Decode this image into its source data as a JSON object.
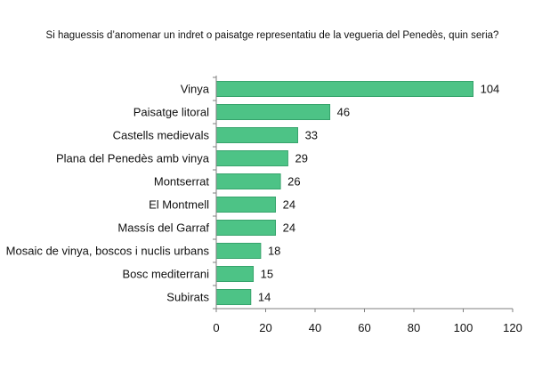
{
  "chart_data": {
    "type": "bar",
    "orientation": "horizontal",
    "title": "Si haguessis d’anomenar un indret o paisatge representatiu de la vegueria del Penedès, quin seria?",
    "categories": [
      "Vinya",
      "Paisatge litoral",
      "Castells medievals",
      "Plana del Penedès amb vinya",
      "Montserrat",
      "El Montmell",
      "Massís del Garraf",
      "Mosaic de vinya, boscos i nuclis urbans",
      "Bosc mediterrani",
      "Subirats"
    ],
    "values": [
      104,
      46,
      33,
      29,
      26,
      24,
      24,
      18,
      15,
      14
    ],
    "xlim": [
      0,
      120
    ],
    "xticks": [
      0,
      20,
      40,
      60,
      80,
      100,
      120
    ],
    "grid": false,
    "bar_color": "#4DC386",
    "bar_border_color": "#2E9B63",
    "axis_color": "#7F7F7F"
  }
}
